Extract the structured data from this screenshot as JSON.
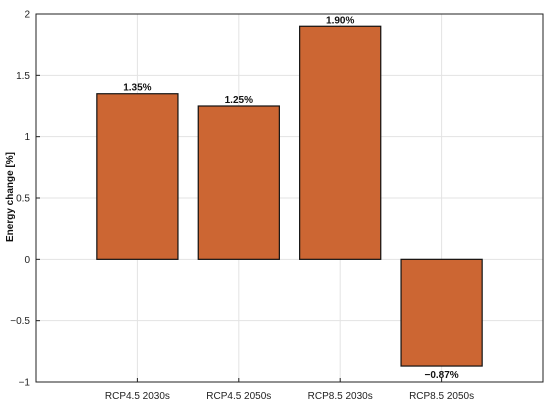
{
  "chart_data": {
    "type": "bar",
    "title": "",
    "xlabel": "",
    "ylabel": "Energy change [%]",
    "categories": [
      "RCP4.5 2030s",
      "RCP4.5 2050s",
      "RCP8.5 2030s",
      "RCP8.5 2050s"
    ],
    "values": [
      1.35,
      1.25,
      1.9,
      -0.87
    ],
    "data_labels": [
      "1.35%",
      "1.25%",
      "1.90%",
      "−0.87%"
    ],
    "ylim": [
      -1,
      2
    ],
    "yticks": [
      -1,
      -0.5,
      0,
      0.5,
      1,
      1.5,
      2
    ],
    "ytick_labels": [
      "−1",
      "−0.5",
      "0",
      "0.5",
      "1",
      "1.5",
      "2"
    ],
    "grid": true,
    "bar_color": "#cc6633",
    "bar_edge_color": "#111111"
  }
}
